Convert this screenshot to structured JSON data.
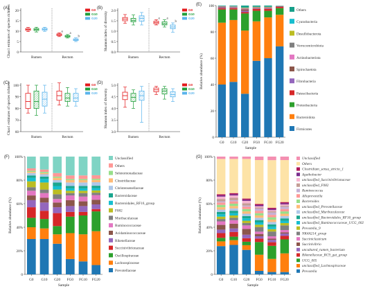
{
  "colors": {
    "G0": "#e31a1c",
    "G10": "#1f9e3a",
    "G20": "#5ab4ec"
  },
  "chart_data": [
    {
      "panel": "(A)",
      "type": "boxplot",
      "ylabel": "Chao1 estimates of species richness",
      "yticks": [
        "0",
        "5",
        "10",
        "15",
        "20"
      ],
      "ylim": [
        0,
        20
      ],
      "groups": [
        "Rumen",
        "Rectum"
      ],
      "legend": [
        "G0",
        "G10",
        "G20"
      ],
      "boxes": [
        {
          "group": "Rumen",
          "series": "G0",
          "min": 9.8,
          "q1": 10.4,
          "median": 10.8,
          "q3": 11.3,
          "max": 11.8,
          "sig": ""
        },
        {
          "group": "Rumen",
          "series": "G10",
          "min": 9.6,
          "q1": 10.3,
          "median": 10.8,
          "q3": 11.3,
          "max": 11.9,
          "sig": ""
        },
        {
          "group": "Rumen",
          "series": "G20",
          "min": 9.9,
          "q1": 10.5,
          "median": 10.9,
          "q3": 11.4,
          "max": 11.9,
          "sig": ""
        },
        {
          "group": "Rectum",
          "series": "G0",
          "min": 7.4,
          "q1": 7.9,
          "median": 8.3,
          "q3": 8.7,
          "max": 9.2,
          "sig": "a"
        },
        {
          "group": "Rectum",
          "series": "G10",
          "min": 6.7,
          "q1": 7.2,
          "median": 7.6,
          "q3": 7.9,
          "max": 8.4,
          "sig": "a"
        },
        {
          "group": "Rectum",
          "series": "G20",
          "min": 5.0,
          "q1": 5.5,
          "median": 5.9,
          "q3": 6.3,
          "max": 6.8,
          "sig": "b"
        }
      ]
    },
    {
      "panel": "(B)",
      "type": "boxplot",
      "ylabel": "Shannon index of diversity",
      "yticks": [
        "0.0",
        "0.5",
        "1.0",
        "1.5",
        "2.0"
      ],
      "ylim": [
        0,
        2
      ],
      "groups": [
        "Rumen",
        "Rectum"
      ],
      "legend": [
        "G0",
        "G10",
        "G20"
      ],
      "boxes": [
        {
          "group": "Rumen",
          "series": "G0",
          "min": 1.38,
          "q1": 1.5,
          "median": 1.58,
          "q3": 1.66,
          "max": 1.8,
          "sig": ""
        },
        {
          "group": "Rumen",
          "series": "G10",
          "min": 1.3,
          "q1": 1.45,
          "median": 1.52,
          "q3": 1.62,
          "max": 1.78,
          "sig": ""
        },
        {
          "group": "Rumen",
          "series": "G20",
          "min": 1.3,
          "q1": 1.48,
          "median": 1.62,
          "q3": 1.74,
          "max": 1.9,
          "sig": ""
        },
        {
          "group": "Rectum",
          "series": "G0",
          "min": 1.3,
          "q1": 1.36,
          "median": 1.42,
          "q3": 1.48,
          "max": 1.55,
          "sig": "a"
        },
        {
          "group": "Rectum",
          "series": "G10",
          "min": 1.2,
          "q1": 1.3,
          "median": 1.36,
          "q3": 1.45,
          "max": 1.55,
          "sig": "a"
        },
        {
          "group": "Rectum",
          "series": "G20",
          "min": 0.95,
          "q1": 1.12,
          "median": 1.2,
          "q3": 1.3,
          "max": 1.4,
          "sig": "b"
        }
      ]
    },
    {
      "panel": "(C)",
      "type": "boxplot",
      "ylabel": "Chao1 estimates of species richness",
      "yticks": [
        "60",
        "70",
        "80",
        "90",
        "100"
      ],
      "ylim": [
        60,
        100
      ],
      "groups": [
        "Rumen",
        "Rectum"
      ],
      "legend": [
        "G0",
        "G10",
        "G20"
      ],
      "boxes": [
        {
          "group": "Rumen",
          "series": "G0",
          "min": 76,
          "q1": 80,
          "median": 86,
          "q3": 93,
          "max": 100,
          "sig": ""
        },
        {
          "group": "Rumen",
          "series": "G10",
          "min": 74,
          "q1": 80,
          "median": 86,
          "q3": 95,
          "max": 100,
          "sig": ""
        },
        {
          "group": "Rumen",
          "series": "G20",
          "min": 76,
          "q1": 82,
          "median": 88,
          "q3": 94,
          "max": 100,
          "sig": ""
        },
        {
          "group": "Rectum",
          "series": "G0",
          "min": 83,
          "q1": 87,
          "median": 91,
          "q3": 95,
          "max": 102,
          "sig": ""
        },
        {
          "group": "Rectum",
          "series": "G10",
          "min": 82,
          "q1": 86,
          "median": 89,
          "q3": 93,
          "max": 98,
          "sig": ""
        },
        {
          "group": "Rectum",
          "series": "G20",
          "min": 82,
          "q1": 86,
          "median": 89,
          "q3": 93,
          "max": 97,
          "sig": ""
        }
      ]
    },
    {
      "panel": "(D)",
      "type": "boxplot",
      "ylabel": "Shannon index of diversity",
      "yticks": [
        "3.0",
        "3.5",
        "4.0",
        "4.5",
        "5.0"
      ],
      "ylim": [
        3,
        5
      ],
      "groups": [
        "Rumen",
        "Rectum"
      ],
      "legend": [
        "G0",
        "G10",
        "G20"
      ],
      "boxes": [
        {
          "group": "Rumen",
          "series": "G0",
          "min": 4.05,
          "q1": 4.38,
          "median": 4.55,
          "q3": 4.7,
          "max": 4.92,
          "sig": ""
        },
        {
          "group": "Rumen",
          "series": "G10",
          "min": 4.0,
          "q1": 4.3,
          "median": 4.48,
          "q3": 4.65,
          "max": 4.8,
          "sig": ""
        },
        {
          "group": "Rumen",
          "series": "G20",
          "min": 3.4,
          "q1": 4.35,
          "median": 4.55,
          "q3": 4.75,
          "max": 4.95,
          "sig": ""
        },
        {
          "group": "Rectum",
          "series": "G0",
          "min": 4.6,
          "q1": 4.72,
          "median": 4.8,
          "q3": 4.88,
          "max": 4.95,
          "sig": ""
        },
        {
          "group": "Rectum",
          "series": "G10",
          "min": 4.4,
          "q1": 4.62,
          "median": 4.75,
          "q3": 4.85,
          "max": 4.95,
          "sig": ""
        },
        {
          "group": "Rectum",
          "series": "G20",
          "min": 4.3,
          "q1": 4.5,
          "median": 4.6,
          "q3": 4.72,
          "max": 4.85,
          "sig": ""
        }
      ]
    },
    {
      "panel": "(E)",
      "type": "stacked-bar",
      "xlabel": "Sample",
      "ylabel": "Relative abundance (%)",
      "yticks": [
        "0",
        "20",
        "40",
        "60",
        "80",
        "100"
      ],
      "categories": [
        "G0",
        "G10",
        "G20",
        "FG0",
        "FG10",
        "FG20"
      ],
      "series": [
        {
          "name": "Firmicutes",
          "color": "#1f77b4",
          "values": [
            40,
            42,
            33,
            58,
            60,
            69
          ]
        },
        {
          "name": "Bacteroidota",
          "color": "#ff7f0e",
          "values": [
            47,
            47,
            48,
            30,
            31,
            24
          ]
        },
        {
          "name": "Proteobacteria",
          "color": "#2ca02c",
          "values": [
            10,
            8,
            13,
            8,
            5,
            5
          ]
        },
        {
          "name": "Patescibacteria",
          "color": "#d62728",
          "values": [
            1,
            1,
            1,
            1.5,
            1.5,
            1
          ]
        },
        {
          "name": "Fibrobacteria",
          "color": "#9467bd",
          "values": [
            0.4,
            0.3,
            1,
            0.3,
            0.3,
            0.2
          ]
        },
        {
          "name": "Spirochaetota",
          "color": "#8c564b",
          "values": [
            0.5,
            0.5,
            1.2,
            0.5,
            0.5,
            0.3
          ]
        },
        {
          "name": "Actinobacteriota",
          "color": "#e377c2",
          "values": [
            0.3,
            0.3,
            0.5,
            0.2,
            0.2,
            0.1
          ]
        },
        {
          "name": "Verrucomicrobiota",
          "color": "#7f7f7f",
          "values": [
            0.2,
            0.2,
            0.4,
            0.3,
            0.3,
            0.1
          ]
        },
        {
          "name": "Desulfobacterota",
          "color": "#bcbd22",
          "values": [
            0.1,
            0.1,
            0.3,
            0.2,
            0.2,
            0.1
          ]
        },
        {
          "name": "Cyanobacteria",
          "color": "#17becf",
          "values": [
            0.1,
            0.1,
            0.2,
            0.1,
            0.1,
            0.1
          ]
        },
        {
          "name": "Others",
          "color": "#17a08a",
          "values": [
            0.4,
            0.5,
            1.4,
            0.9,
            0.9,
            0.1
          ]
        }
      ]
    },
    {
      "panel": "(F)",
      "type": "stacked-bar",
      "xlabel": "Sample",
      "ylabel": "Relative abundance (%)",
      "yticks": [
        "0",
        "20%",
        "40%",
        "60%",
        "80%",
        "100%"
      ],
      "categories": [
        "G0",
        "G10",
        "G20",
        "FG0",
        "FG10",
        "FG20"
      ],
      "series": [
        {
          "name": "Prevotellaceae",
          "color": "#1f77b4",
          "values": [
            30,
            30,
            26,
            13,
            11,
            8
          ]
        },
        {
          "name": "Lachnospiraceae",
          "color": "#ff7f0e",
          "values": [
            10,
            9,
            8,
            22,
            23,
            29
          ]
        },
        {
          "name": "Oscillospiraceae",
          "color": "#2ca02c",
          "values": [
            8,
            8,
            7,
            14,
            16,
            17
          ]
        },
        {
          "name": "Succinivibrionaceae",
          "color": "#d62728",
          "values": [
            9,
            7,
            11,
            4,
            3,
            2
          ]
        },
        {
          "name": "Rikenellaceae",
          "color": "#9467bd",
          "values": [
            6,
            7,
            5,
            5,
            5,
            4
          ]
        },
        {
          "name": "Acidaminococcaceae",
          "color": "#8c564b",
          "values": [
            4,
            4,
            4,
            5,
            4,
            4
          ]
        },
        {
          "name": "Ruminococcaceae",
          "color": "#e377c2",
          "values": [
            4,
            4,
            3,
            4,
            4,
            4
          ]
        },
        {
          "name": "Muribaculaceae",
          "color": "#7f7f7f",
          "values": [
            3,
            3,
            4,
            2,
            3,
            2
          ]
        },
        {
          "name": "F082",
          "color": "#bcbd22",
          "values": [
            5,
            6,
            4,
            2,
            2,
            2
          ]
        },
        {
          "name": "Bacteroidales_RF16_group",
          "color": "#17becf",
          "values": [
            3,
            3,
            3,
            2,
            2,
            2
          ]
        },
        {
          "name": "Bacteroidaceae",
          "color": "#1aa68f",
          "values": [
            2,
            2,
            3,
            2,
            2,
            2
          ]
        },
        {
          "name": "Christensenellaceae",
          "color": "#aec7e8",
          "values": [
            2,
            2,
            2,
            3,
            3,
            3
          ]
        },
        {
          "name": "Clostridiaceae",
          "color": "#ffbb78",
          "values": [
            1,
            1,
            2,
            2,
            2,
            2
          ]
        },
        {
          "name": "Selenomonadaceae",
          "color": "#98df8a",
          "values": [
            1,
            1,
            1,
            1,
            1,
            1
          ]
        },
        {
          "name": "Others",
          "color": "#ff9896",
          "values": [
            2,
            2,
            3,
            3,
            3,
            3
          ]
        },
        {
          "name": "Unclassified",
          "color": "#7fd4c4",
          "values": [
            10,
            11,
            14,
            16,
            16,
            16
          ]
        }
      ]
    },
    {
      "panel": "(G)",
      "type": "stacked-bar",
      "xlabel": "Sample",
      "ylabel": "Relative abundance (%)",
      "yticks": [
        "0",
        "20%",
        "40%",
        "60%",
        "80%",
        "100%"
      ],
      "categories": [
        "G0",
        "G10",
        "G20",
        "FG0",
        "FG10",
        "FG20"
      ],
      "series": [
        {
          "name": "Prevotella",
          "color": "#1f77b4",
          "values": [
            24,
            25,
            21,
            3,
            2,
            2
          ]
        },
        {
          "name": "unclassified_Lachnospiraceae",
          "color": "#ff7f0e",
          "values": [
            4,
            4,
            4,
            14,
            11,
            16
          ]
        },
        {
          "name": "UCG_005",
          "color": "#2ca02c",
          "values": [
            3,
            3,
            3,
            11,
            11,
            12
          ]
        },
        {
          "name": "Rikenellaceae_RC9_gut_group",
          "color": "#d62728",
          "values": [
            4,
            4,
            3,
            3,
            3,
            3
          ]
        },
        {
          "name": "uncultured_rumen_bacterium",
          "color": "#9467bd",
          "values": [
            3,
            3,
            3,
            2,
            2,
            2
          ]
        },
        {
          "name": "Succinivibrio",
          "color": "#8c564b",
          "values": [
            4,
            4,
            5,
            2,
            1,
            1
          ]
        },
        {
          "name": "Succiniclasticum",
          "color": "#e377c2",
          "values": [
            3,
            3,
            3,
            2,
            2,
            2
          ]
        },
        {
          "name": "NK4A214_group",
          "color": "#7f7f7f",
          "values": [
            2,
            2,
            2,
            4,
            4,
            4
          ]
        },
        {
          "name": "Prevotella_9",
          "color": "#bcbd22",
          "values": [
            2,
            2,
            2,
            2,
            2,
            2
          ]
        },
        {
          "name": "unclassified_Ruminococcaceae_UCG_002",
          "color": "#17becf",
          "values": [
            2,
            2,
            2,
            2,
            2,
            2
          ]
        },
        {
          "name": "unclassified_Bacteroidales_RF16_group",
          "color": "#1aa68f",
          "values": [
            2,
            2,
            2,
            2,
            2,
            2
          ]
        },
        {
          "name": "unclassified_Muribaculaceae",
          "color": "#aec7e8",
          "values": [
            2,
            2,
            2,
            2,
            2,
            2
          ]
        },
        {
          "name": "unclassified_Prevotellaceae",
          "color": "#ffbb78",
          "values": [
            2,
            2,
            2,
            2,
            2,
            2
          ]
        },
        {
          "name": "Bacteroides",
          "color": "#98df8a",
          "values": [
            2,
            2,
            2,
            2,
            2,
            2
          ]
        },
        {
          "name": "Alloprevotella",
          "color": "#ff9896",
          "values": [
            2,
            2,
            2,
            2,
            2,
            2
          ]
        },
        {
          "name": "Ruminococcus",
          "color": "#c5b0d5",
          "values": [
            1,
            1,
            1,
            2,
            2,
            2
          ]
        },
        {
          "name": "unclassified_F082",
          "color": "#c49c94",
          "values": [
            2,
            2,
            2,
            1,
            1,
            1
          ]
        },
        {
          "name": "unclassified_Succinivibrionaceae",
          "color": "#f7b6d2",
          "values": [
            2,
            2,
            2,
            1,
            1,
            1
          ]
        },
        {
          "name": "Agathobacter",
          "color": "#7b2d8e",
          "values": [
            1,
            1,
            1,
            1,
            1,
            1
          ]
        },
        {
          "name": "Clostridium_sensu_stricto_1",
          "color": "#b0185a",
          "values": [
            1,
            1,
            1,
            1,
            1,
            1
          ]
        },
        {
          "name": "Others",
          "color": "#fde3a7",
          "values": [
            30,
            29,
            34,
            38,
            40,
            36
          ]
        },
        {
          "name": "Unclassified",
          "color": "#f48fb1",
          "values": [
            2,
            2,
            2,
            3,
            3,
            3
          ]
        }
      ]
    }
  ]
}
